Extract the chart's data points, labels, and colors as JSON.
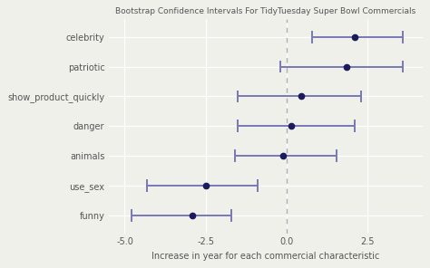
{
  "title": "Bootstrap Confidence Intervals For TidyTuesday Super Bowl Commercials",
  "xlabel": "Increase in year for each commercial characteristic",
  "categories": [
    "funny",
    "use_sex",
    "animals",
    "danger",
    "show_product_quickly",
    "patriotic",
    "celebrity"
  ],
  "point_estimates": [
    -2.9,
    -2.5,
    -0.1,
    0.15,
    0.45,
    1.85,
    2.1
  ],
  "ci_low": [
    -4.8,
    -4.3,
    -1.6,
    -1.5,
    -1.5,
    -0.2,
    0.8
  ],
  "ci_high": [
    -1.7,
    -0.9,
    1.55,
    2.1,
    2.3,
    3.6,
    3.6
  ],
  "xlim": [
    -5.5,
    4.2
  ],
  "xticks": [
    -5.0,
    -2.5,
    0.0,
    2.5
  ],
  "xtick_labels": [
    "-5.0",
    "-2.5",
    "0.0",
    "2.5"
  ],
  "point_color": "#1a1a5c",
  "line_color": "#7878b5",
  "dashed_line_color": "#b0b0b0",
  "bg_color": "#f0f0eb",
  "grid_color": "#ffffff",
  "title_fontsize": 6.5,
  "label_fontsize": 7.0,
  "tick_fontsize": 7.0,
  "ylabel_color": "#555555",
  "title_color": "#555555"
}
